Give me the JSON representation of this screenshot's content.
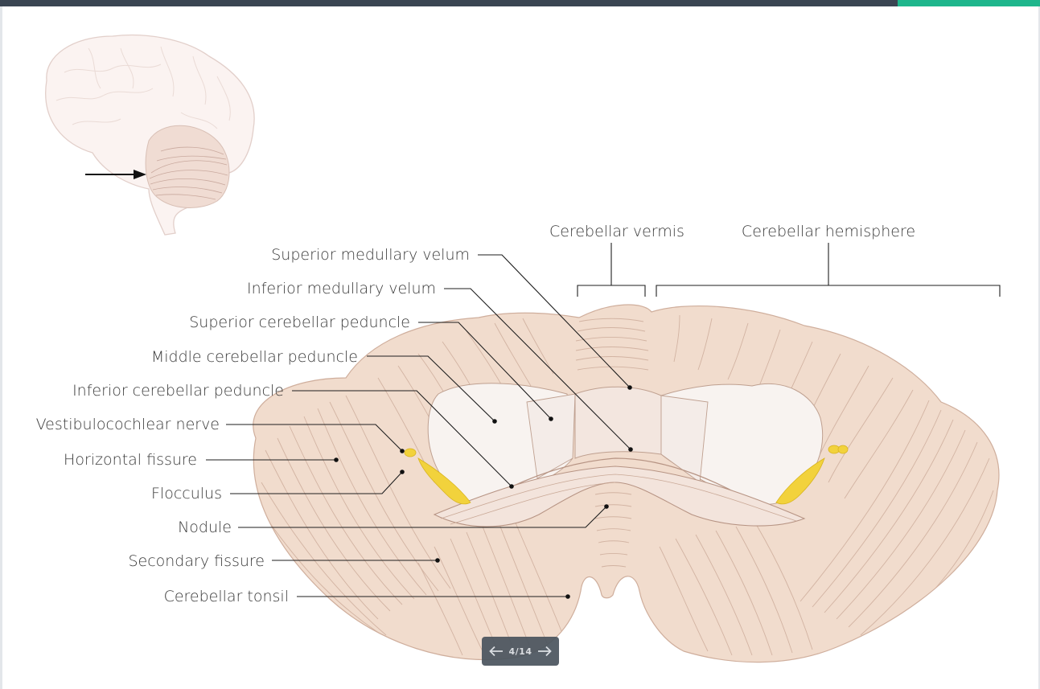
{
  "labels": {
    "superior_medullary_velum": "Superior medullary velum",
    "inferior_medullary_velum": "Inferior medullary velum",
    "superior_cerebellar_peduncle": "Superior cerebellar peduncle",
    "middle_cerebellar_peduncle": "Middle cerebellar peduncle",
    "inferior_cerebellar_peduncle": "Inferior cerebellar peduncle",
    "vestibulocochlear_nerve": "Vestibulocochlear nerve",
    "horizontal_fissure": "Horizontal fissure",
    "flocculus": "Flocculus",
    "nodule": "Nodule",
    "secondary_fissure": "Secondary fissure",
    "cerebellar_tonsil": "Cerebellar tonsil",
    "cerebellar_vermis": "Cerebellar vermis",
    "cerebellar_hemisphere": "Cerebellar hemisphere"
  },
  "pager": {
    "text": "4/14"
  },
  "colors": {
    "tissue": "#f1dccd",
    "tissue_line": "#c9a896",
    "cut_surface": "#f8f3f0",
    "nerve": "#f2d23c",
    "topbar": "#3a4552",
    "accent": "#1fb68c"
  },
  "icons": {
    "prev": "arrow-left-icon",
    "next": "arrow-right-icon",
    "orientation": "brain-orientation-icon"
  }
}
